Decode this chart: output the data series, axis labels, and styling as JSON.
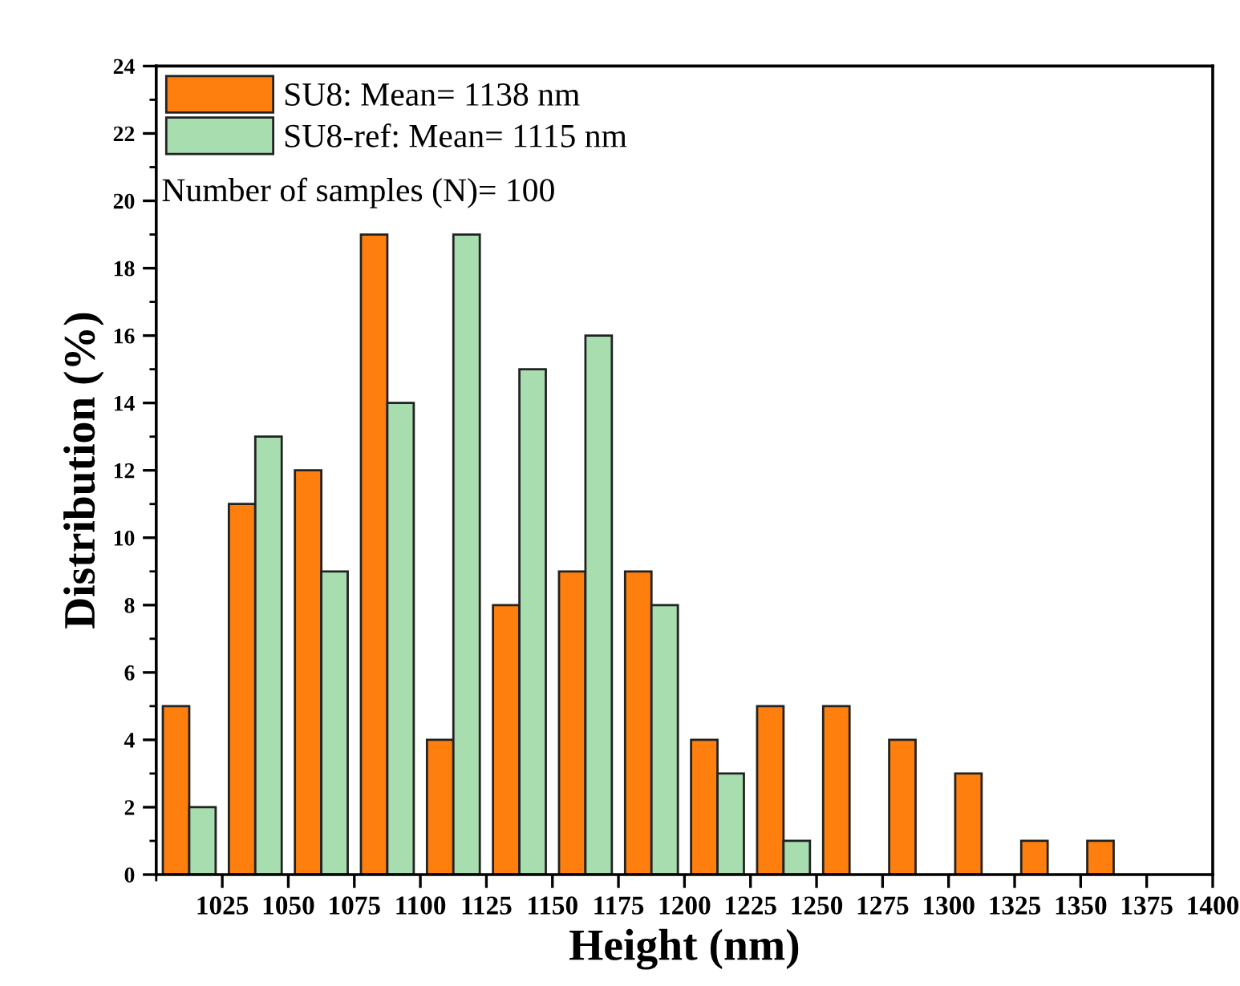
{
  "chart_data": {
    "type": "bar",
    "xlabel": "Height (nm)",
    "ylabel": "Distribution (%)",
    "xlim": [
      1000,
      1400
    ],
    "ylim": [
      0,
      24
    ],
    "xticks": [
      {
        "value": 1000,
        "label": null
      },
      1025,
      1050,
      1075,
      1100,
      1125,
      1150,
      1175,
      1200,
      1225,
      1250,
      1275,
      1300,
      1325,
      1350,
      1375,
      1400
    ],
    "yticks": [
      0,
      {
        "value": 1,
        "label": null
      },
      2,
      {
        "value": 3,
        "label": null
      },
      4,
      {
        "value": 5,
        "label": null
      },
      6,
      {
        "value": 7,
        "label": null
      },
      8,
      {
        "value": 9,
        "label": null
      },
      10,
      {
        "value": 11,
        "label": null
      },
      12,
      {
        "value": 13,
        "label": null
      },
      14,
      {
        "value": 15,
        "label": null
      },
      16,
      {
        "value": 17,
        "label": null
      },
      18,
      {
        "value": 19,
        "label": null
      },
      20,
      {
        "value": 21,
        "label": null
      },
      22,
      {
        "value": 23,
        "label": null
      },
      24
    ],
    "series": [
      {
        "name": "SU8: Mean= 1138 nm",
        "color": "#ff7f0e",
        "x": [
          1007.5,
          1032.5,
          1057.5,
          1082.5,
          1107.5,
          1132.5,
          1157.5,
          1182.5,
          1207.5,
          1232.5,
          1257.5,
          1282.5,
          1307.5,
          1332.5,
          1357.5
        ],
        "values": [
          5,
          11,
          12,
          19,
          4,
          8,
          9,
          9,
          4,
          5,
          5,
          4,
          3,
          1,
          1
        ]
      },
      {
        "name": "SU8-ref: Mean= 1115 nm",
        "color": "#a8ddb0",
        "x": [
          1017.5,
          1042.5,
          1067.5,
          1092.5,
          1117.5,
          1142.5,
          1167.5,
          1192.5,
          1217.5,
          1242.5
        ],
        "values": [
          2,
          13,
          9,
          14,
          19,
          15,
          16,
          8,
          3,
          1
        ]
      }
    ],
    "annotations": [
      "Number of samples (N)= 100"
    ],
    "legend": "top left",
    "grid": false
  }
}
